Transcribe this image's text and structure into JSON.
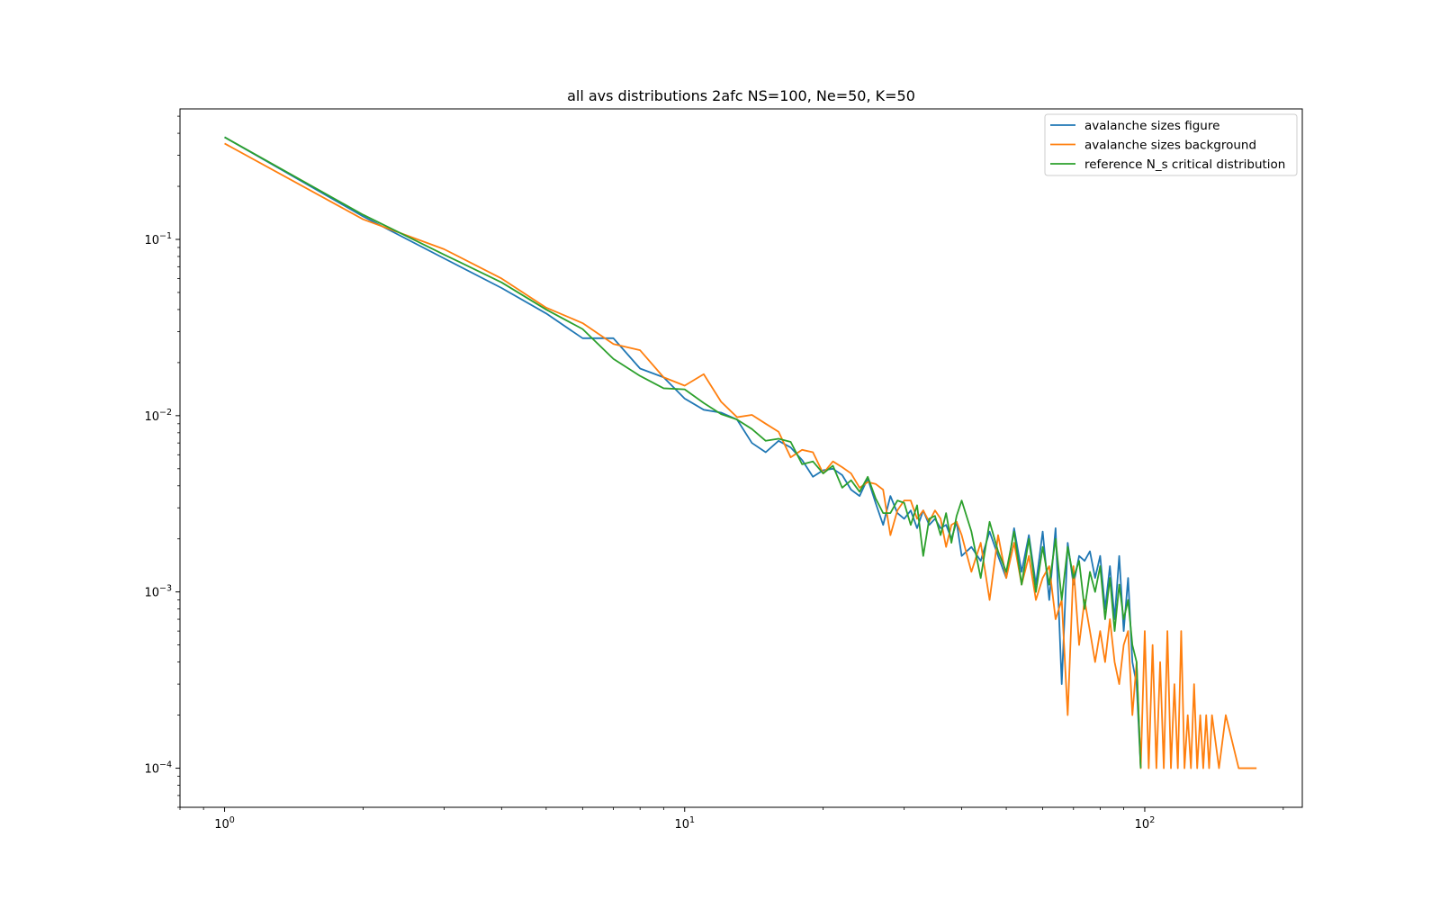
{
  "chart_data": {
    "type": "line",
    "title": "all avs distributions 2afc NS=100, Ne=50, K=50",
    "xlabel": "",
    "ylabel": "",
    "xscale": "log",
    "yscale": "log",
    "xlim": [
      0.8,
      220
    ],
    "ylim": [
      6e-05,
      0.55
    ],
    "grid": false,
    "legend_position": "top-right",
    "x_ticks": [
      {
        "value": 1,
        "base": "10",
        "exp": "0"
      },
      {
        "value": 10,
        "base": "10",
        "exp": "1"
      },
      {
        "value": 100,
        "base": "10",
        "exp": "2"
      }
    ],
    "y_ticks": [
      {
        "value": 0.1,
        "base": "10",
        "exp": "−1"
      },
      {
        "value": 0.01,
        "base": "10",
        "exp": "−2"
      },
      {
        "value": 0.001,
        "base": "10",
        "exp": "−3"
      },
      {
        "value": 0.0001,
        "base": "10",
        "exp": "−4"
      }
    ],
    "series": [
      {
        "name": "avalanche sizes figure",
        "color": "#1f77b4",
        "x": [
          1,
          2,
          3,
          4,
          5,
          6,
          7,
          8,
          9,
          10,
          11,
          12,
          13,
          14,
          15,
          16,
          17,
          18,
          19,
          20,
          21,
          22,
          23,
          24,
          25,
          26,
          27,
          28,
          29,
          30,
          31,
          32,
          33,
          34,
          35,
          36,
          37,
          38,
          39,
          40,
          42,
          44,
          46,
          48,
          50,
          52,
          54,
          56,
          58,
          60,
          62,
          64,
          66,
          68,
          70,
          72,
          74,
          76,
          78,
          80,
          82,
          84,
          86,
          88,
          90,
          92,
          94,
          96,
          98
        ],
        "y": [
          0.38,
          0.135,
          0.078,
          0.053,
          0.038,
          0.0275,
          0.0275,
          0.0185,
          0.0165,
          0.0125,
          0.0108,
          0.0104,
          0.0095,
          0.007,
          0.0062,
          0.0072,
          0.0066,
          0.0056,
          0.0045,
          0.0049,
          0.005,
          0.0046,
          0.0038,
          0.0035,
          0.0044,
          0.0032,
          0.0024,
          0.0035,
          0.0028,
          0.0026,
          0.0029,
          0.0023,
          0.0029,
          0.0024,
          0.0026,
          0.0023,
          0.0024,
          0.002,
          0.0025,
          0.0016,
          0.0018,
          0.0015,
          0.0022,
          0.0016,
          0.0012,
          0.0023,
          0.0013,
          0.0021,
          0.0011,
          0.0022,
          0.0009,
          0.0023,
          0.0003,
          0.0019,
          0.0011,
          0.0016,
          0.0015,
          0.0017,
          0.0012,
          0.0016,
          0.0008,
          0.0014,
          0.0007,
          0.0016,
          0.0006,
          0.0012,
          0.0004,
          0.0003,
          0.0001
        ]
      },
      {
        "name": "avalanche sizes background",
        "color": "#ff7f0e",
        "x": [
          1,
          2,
          3,
          4,
          5,
          6,
          7,
          8,
          9,
          10,
          11,
          12,
          13,
          14,
          15,
          16,
          17,
          18,
          19,
          20,
          21,
          22,
          23,
          24,
          25,
          26,
          27,
          28,
          29,
          30,
          31,
          32,
          33,
          34,
          35,
          36,
          37,
          38,
          39,
          40,
          42,
          44,
          46,
          48,
          50,
          52,
          54,
          56,
          58,
          60,
          62,
          64,
          66,
          68,
          70,
          72,
          74,
          76,
          78,
          80,
          82,
          84,
          86,
          88,
          90,
          92,
          94,
          96,
          98,
          100,
          102,
          104,
          106,
          108,
          110,
          112,
          114,
          116,
          118,
          120,
          122,
          124,
          126,
          128,
          130,
          132,
          134,
          136,
          138,
          140,
          145,
          150,
          160,
          175
        ],
        "y": [
          0.35,
          0.13,
          0.088,
          0.06,
          0.041,
          0.0335,
          0.0255,
          0.0235,
          0.0165,
          0.0148,
          0.0172,
          0.012,
          0.0098,
          0.0101,
          0.009,
          0.0081,
          0.0058,
          0.0064,
          0.0062,
          0.0047,
          0.0055,
          0.0051,
          0.0047,
          0.0039,
          0.0042,
          0.0041,
          0.0038,
          0.0021,
          0.0029,
          0.0033,
          0.0033,
          0.0026,
          0.0029,
          0.0025,
          0.0029,
          0.0026,
          0.0018,
          0.0024,
          0.0025,
          0.0021,
          0.0013,
          0.0019,
          0.0009,
          0.0021,
          0.0012,
          0.0019,
          0.0011,
          0.0016,
          0.0009,
          0.0012,
          0.0014,
          0.0007,
          0.0009,
          0.0002,
          0.0014,
          0.0005,
          0.0009,
          0.0006,
          0.0004,
          0.0006,
          0.0004,
          0.0007,
          0.0004,
          0.0003,
          0.0005,
          0.0006,
          0.0002,
          0.0004,
          0.0001,
          0.0006,
          0.0001,
          0.0005,
          0.0001,
          0.0004,
          0.0001,
          0.0006,
          0.0001,
          0.0003,
          0.0001,
          0.0006,
          0.0001,
          0.0002,
          0.0001,
          0.0003,
          0.0001,
          0.0002,
          0.0001,
          0.0002,
          0.0001,
          0.0002,
          0.0001,
          0.0002,
          0.0001,
          0.0001
        ]
      },
      {
        "name": "reference N_s critical distribution",
        "color": "#2ca02c",
        "x": [
          1,
          2,
          3,
          4,
          5,
          6,
          7,
          8,
          9,
          10,
          11,
          12,
          13,
          14,
          15,
          16,
          17,
          18,
          19,
          20,
          21,
          22,
          23,
          24,
          25,
          26,
          27,
          28,
          29,
          30,
          31,
          32,
          33,
          34,
          35,
          36,
          37,
          38,
          39,
          40,
          42,
          44,
          46,
          48,
          50,
          52,
          54,
          56,
          58,
          60,
          62,
          64,
          66,
          68,
          70,
          72,
          74,
          76,
          78,
          80,
          82,
          84,
          86,
          88,
          90,
          92,
          94,
          96,
          98
        ],
        "y": [
          0.38,
          0.138,
          0.082,
          0.057,
          0.04,
          0.031,
          0.021,
          0.0168,
          0.0143,
          0.0141,
          0.0118,
          0.0102,
          0.0095,
          0.0084,
          0.0072,
          0.0074,
          0.0071,
          0.0053,
          0.0055,
          0.0047,
          0.0052,
          0.0039,
          0.0043,
          0.0037,
          0.0045,
          0.0034,
          0.0028,
          0.0028,
          0.0033,
          0.0032,
          0.0024,
          0.0031,
          0.0016,
          0.0026,
          0.0027,
          0.0021,
          0.0028,
          0.0019,
          0.0027,
          0.0033,
          0.0022,
          0.0012,
          0.0025,
          0.0017,
          0.0013,
          0.0022,
          0.0011,
          0.002,
          0.001,
          0.0018,
          0.0011,
          0.002,
          0.0009,
          0.0018,
          0.0012,
          0.0015,
          0.0008,
          0.0013,
          0.001,
          0.0014,
          0.0007,
          0.0012,
          0.0006,
          0.0011,
          0.0007,
          0.0009,
          0.0005,
          0.0004,
          0.0001
        ]
      }
    ]
  }
}
